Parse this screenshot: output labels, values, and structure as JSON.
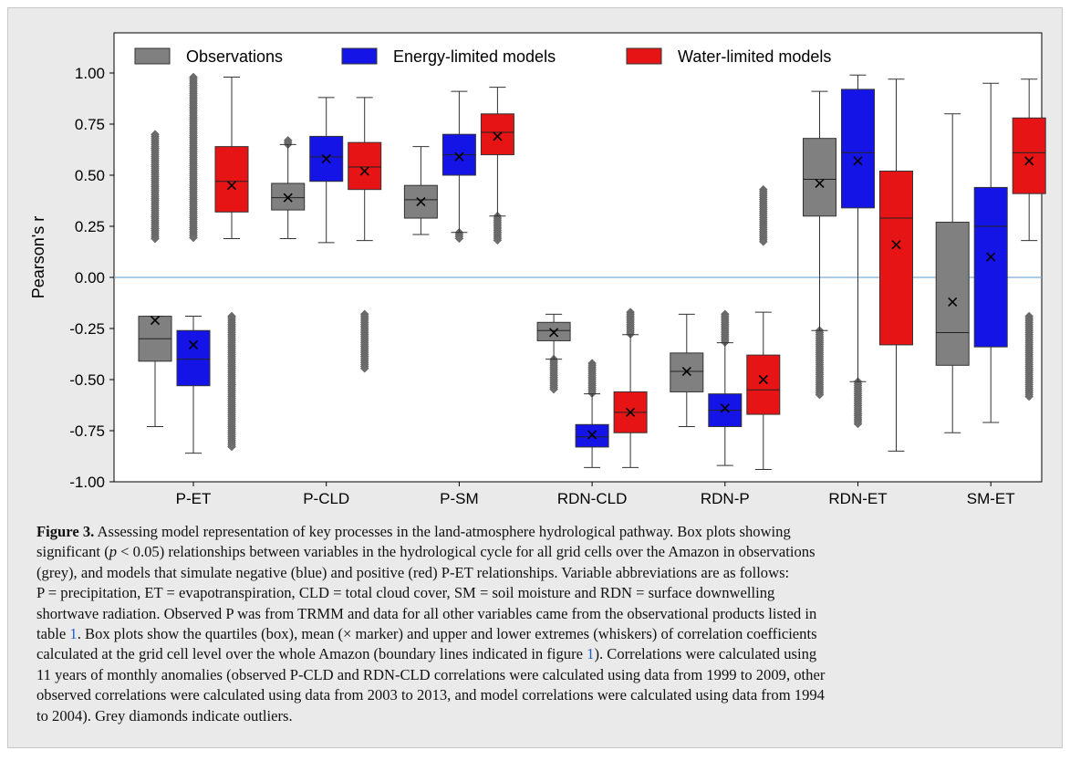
{
  "chart_data": {
    "type": "box",
    "ylabel": "Pearson's r",
    "xlabel": "",
    "ylim": [
      -1.0,
      1.15
    ],
    "yticks": [
      "1.00",
      "0.75",
      "0.50",
      "0.25",
      "0.00",
      "-0.25",
      "-0.50",
      "-0.75",
      "-1.00"
    ],
    "ytick_values": [
      1.0,
      0.75,
      0.5,
      0.25,
      0.0,
      -0.25,
      -0.5,
      -0.75,
      -1.0
    ],
    "categories": [
      "P-ET",
      "P-CLD",
      "P-SM",
      "RDN-CLD",
      "RDN-P",
      "RDN-ET",
      "SM-ET"
    ],
    "reference_line": 0.0,
    "legend_position": "top",
    "series": [
      {
        "name": "Observations",
        "color": "#808080",
        "boxes": [
          {
            "category": "P-ET",
            "segment": "positive",
            "whisker_low": 0.18,
            "q1": 0.18,
            "median": 0.18,
            "q3": 0.18,
            "whisker_high": 0.18,
            "mean": null,
            "outliers_range": [
              0.18,
              0.7
            ],
            "outliers_only": true
          },
          {
            "category": "P-ET",
            "segment": "negative",
            "whisker_low": -0.73,
            "q1": -0.41,
            "median": -0.3,
            "q3": -0.19,
            "whisker_high": -0.19,
            "mean": -0.21
          },
          {
            "category": "P-CLD",
            "whisker_low": 0.19,
            "q1": 0.33,
            "median": 0.39,
            "q3": 0.46,
            "whisker_high": 0.65,
            "mean": 0.39,
            "outliers_range": [
              0.65,
              0.67
            ]
          },
          {
            "category": "P-SM",
            "whisker_low": 0.21,
            "q1": 0.29,
            "median": 0.38,
            "q3": 0.45,
            "whisker_high": 0.64,
            "mean": 0.37
          },
          {
            "category": "RDN-CLD",
            "whisker_low": -0.4,
            "q1": -0.31,
            "median": -0.26,
            "q3": -0.22,
            "whisker_high": -0.18,
            "mean": -0.27,
            "outliers_range": [
              -0.55,
              -0.4
            ]
          },
          {
            "category": "RDN-P",
            "whisker_low": -0.73,
            "q1": -0.56,
            "median": -0.46,
            "q3": -0.37,
            "whisker_high": -0.18,
            "mean": -0.46
          },
          {
            "category": "RDN-ET",
            "whisker_low": -0.26,
            "q1": 0.3,
            "median": 0.48,
            "q3": 0.68,
            "whisker_high": 0.91,
            "mean": 0.46,
            "outliers_range": [
              -0.58,
              -0.26
            ]
          },
          {
            "category": "SM-ET",
            "whisker_low": -0.76,
            "q1": -0.43,
            "median": -0.27,
            "q3": 0.27,
            "whisker_high": 0.8,
            "mean": -0.12
          }
        ]
      },
      {
        "name": "Energy-limited models",
        "color": "#1414e6",
        "boxes": [
          {
            "category": "P-ET",
            "segment": "positive",
            "whisker_low": 0.19,
            "q1": 0.19,
            "median": 0.19,
            "q3": 0.19,
            "whisker_high": 0.19,
            "mean": null,
            "outliers_range": [
              0.19,
              0.98
            ],
            "outliers_only": true
          },
          {
            "category": "P-ET",
            "segment": "negative",
            "whisker_low": -0.86,
            "q1": -0.53,
            "median": -0.4,
            "q3": -0.26,
            "whisker_high": -0.19,
            "mean": -0.33
          },
          {
            "category": "P-CLD",
            "whisker_low": 0.17,
            "q1": 0.47,
            "median": 0.59,
            "q3": 0.69,
            "whisker_high": 0.88,
            "mean": 0.58
          },
          {
            "category": "P-SM",
            "whisker_low": 0.22,
            "q1": 0.5,
            "median": 0.6,
            "q3": 0.7,
            "whisker_high": 0.91,
            "mean": 0.59,
            "outliers_range": [
              0.19,
              0.22
            ]
          },
          {
            "category": "RDN-CLD",
            "whisker_low": -0.93,
            "q1": -0.83,
            "median": -0.78,
            "q3": -0.72,
            "whisker_high": -0.57,
            "mean": -0.77,
            "outliers_range": [
              -0.57,
              -0.42
            ]
          },
          {
            "category": "RDN-P",
            "whisker_low": -0.92,
            "q1": -0.73,
            "median": -0.65,
            "q3": -0.57,
            "whisker_high": -0.32,
            "mean": -0.64,
            "outliers_range": [
              -0.32,
              -0.18
            ]
          },
          {
            "category": "RDN-ET",
            "whisker_low": -0.51,
            "q1": 0.34,
            "median": 0.61,
            "q3": 0.92,
            "whisker_high": 0.99,
            "mean": 0.57,
            "outliers_range": [
              -0.72,
              -0.51
            ]
          },
          {
            "category": "SM-ET",
            "whisker_low": -0.71,
            "q1": -0.34,
            "median": 0.25,
            "q3": 0.44,
            "whisker_high": 0.95,
            "mean": 0.1
          }
        ]
      },
      {
        "name": "Water-limited models",
        "color": "#e61414",
        "boxes": [
          {
            "category": "P-ET",
            "segment": "positive",
            "whisker_low": 0.19,
            "q1": 0.32,
            "median": 0.47,
            "q3": 0.64,
            "whisker_high": 0.98,
            "mean": 0.45
          },
          {
            "category": "P-ET",
            "segment": "negative",
            "whisker_low": -0.19,
            "q1": -0.19,
            "median": -0.19,
            "q3": -0.19,
            "whisker_high": -0.19,
            "mean": null,
            "outliers_range": [
              -0.83,
              -0.19
            ],
            "outliers_only": true
          },
          {
            "category": "P-CLD",
            "segment": "positive",
            "whisker_low": 0.18,
            "q1": 0.43,
            "median": 0.54,
            "q3": 0.66,
            "whisker_high": 0.88,
            "mean": 0.52
          },
          {
            "category": "P-CLD",
            "segment": "negative",
            "whisker_low": -0.18,
            "q1": -0.18,
            "median": -0.18,
            "q3": -0.18,
            "whisker_high": -0.18,
            "mean": null,
            "outliers_range": [
              -0.45,
              -0.18
            ],
            "outliers_only": true
          },
          {
            "category": "P-SM",
            "whisker_low": 0.3,
            "q1": 0.6,
            "median": 0.71,
            "q3": 0.8,
            "whisker_high": 0.93,
            "mean": 0.69,
            "outliers_range": [
              0.18,
              0.3
            ]
          },
          {
            "category": "RDN-CLD",
            "whisker_low": -0.93,
            "q1": -0.76,
            "median": -0.66,
            "q3": -0.56,
            "whisker_high": -0.28,
            "mean": -0.66,
            "outliers_range": [
              -0.28,
              -0.17
            ]
          },
          {
            "category": "RDN-P",
            "segment": "negative",
            "whisker_low": -0.94,
            "q1": -0.67,
            "median": -0.55,
            "q3": -0.38,
            "whisker_high": -0.17,
            "mean": -0.5
          },
          {
            "category": "RDN-P",
            "segment": "positive",
            "whisker_low": 0.17,
            "q1": 0.17,
            "median": 0.17,
            "q3": 0.17,
            "whisker_high": 0.17,
            "mean": null,
            "outliers_range": [
              0.17,
              0.43
            ],
            "outliers_only": true
          },
          {
            "category": "RDN-ET",
            "whisker_low": -0.85,
            "q1": -0.33,
            "median": 0.29,
            "q3": 0.52,
            "whisker_high": 0.97,
            "mean": 0.16
          },
          {
            "category": "SM-ET",
            "segment": "positive",
            "whisker_low": 0.18,
            "q1": 0.41,
            "median": 0.61,
            "q3": 0.78,
            "whisker_high": 0.97,
            "mean": 0.57
          },
          {
            "category": "SM-ET",
            "segment": "negative",
            "whisker_low": -0.19,
            "q1": -0.19,
            "median": -0.19,
            "q3": -0.19,
            "whisker_high": -0.19,
            "mean": null,
            "outliers_range": [
              -0.59,
              -0.19
            ],
            "outliers_only": true
          }
        ]
      }
    ]
  },
  "caption": {
    "label": "Figure 3.",
    "lines": [
      [
        {
          "t": "Figure 3.",
          "s": "b"
        },
        {
          "t": " Assessing model representation of key processes in the land-atmosphere hydrological pathway. Box plots showing"
        }
      ],
      [
        {
          "t": "significant ("
        },
        {
          "t": "p",
          "s": "i"
        },
        {
          "t": " < 0.05) relationships between variables in the hydrological cycle for all grid cells over the Amazon in observations"
        }
      ],
      [
        {
          "t": "(grey), and models that simulate negative (blue) and positive (red) P-ET relationships. Variable abbreviations are as follows:"
        }
      ],
      [
        {
          "t": "P = precipitation, ET = evapotranspiration, CLD = total cloud cover, SM = soil moisture and RDN = surface downwelling"
        }
      ],
      [
        {
          "t": "shortwave radiation. Observed P was from TRMM and data for all other variables came from the observational products listed in"
        }
      ],
      [
        {
          "t": "table "
        },
        {
          "t": "1",
          "s": "r"
        },
        {
          "t": ". Box plots show the quartiles (box), mean (× marker) and upper and lower extremes (whiskers) of correlation coefficients"
        }
      ],
      [
        {
          "t": "calculated at the grid cell level over the whole Amazon (boundary lines indicated in figure "
        },
        {
          "t": "1",
          "s": "r"
        },
        {
          "t": "). Correlations were calculated using"
        }
      ],
      [
        {
          "t": "11 years of monthly anomalies (observed P-CLD and RDN-CLD correlations were calculated using data from 1999 to 2009, other"
        }
      ],
      [
        {
          "t": "observed correlations were calculated using data from 2003 to 2013, and model correlations were calculated using data from 1994"
        }
      ],
      [
        {
          "t": "to 2004). Grey diamonds indicate outliers."
        }
      ]
    ]
  }
}
